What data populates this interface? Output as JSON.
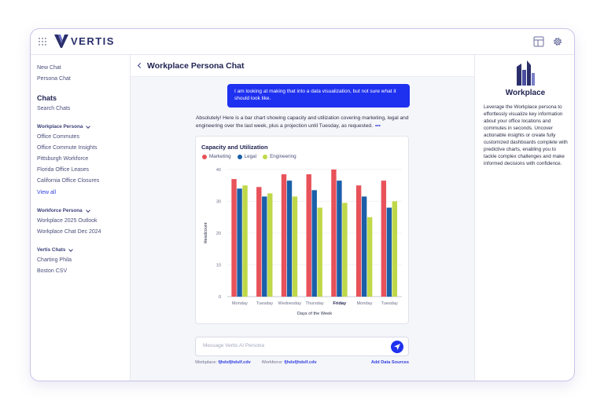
{
  "app": {
    "name": "VERTIS"
  },
  "sidebar": {
    "top_links": [
      "New Chat",
      "Persona Chat"
    ],
    "chats_heading": "Chats",
    "search_chats": "Search Chats",
    "groups": [
      {
        "label": "Workplace Persona",
        "items": [
          "Office Commutes",
          "Office Commute Insights",
          "Pittsburgh Workforce",
          "Florida Office Leases",
          "California Office Closures"
        ],
        "view_all": "View all"
      },
      {
        "label": "Workforce Persona",
        "items": [
          "Workplace 2025 Outlook",
          "Workplace Chat Dec 2024"
        ]
      },
      {
        "label": "Vertis Chats",
        "items": [
          "Charting Phila",
          "Boston CSV"
        ]
      }
    ]
  },
  "main": {
    "title": "Workplace Persona Chat",
    "user_message": "I am looking at making that into a data visualization, but not sure what it should look like.",
    "assistant_message": "Absolutely! Here is a bar chart showing capacity and utilization covering marketing, legal and engineering over the last week, plus a projection until Tuesday, as requested.",
    "input_placeholder": "Message Vertis AI Persona",
    "sources": {
      "workplace_label": "Workplace:",
      "workplace_file": "fjhdsfjhdslf.cdv",
      "workforce_label": "Workforce:",
      "workforce_file": "fjhdsfjhdslf.cdv",
      "add_label": "Add Data Sources"
    }
  },
  "chart_data": {
    "type": "bar",
    "title": "Capacity and Utilization",
    "xlabel": "Days of the Week",
    "ylabel": "Headcount",
    "ylim": [
      0,
      40
    ],
    "yticks": [
      0,
      10,
      20,
      30,
      40
    ],
    "grid": true,
    "legend": "top-left",
    "highlighted_category": "Friday",
    "categories": [
      "Monday",
      "Tuesday",
      "Wednesday",
      "Thursday",
      "Friday",
      "Monday",
      "Tuesday"
    ],
    "series": [
      {
        "name": "Marketing",
        "color": "#e8525a",
        "values": [
          37,
          34.5,
          38.5,
          38.5,
          40,
          35,
          36.5
        ]
      },
      {
        "name": "Legal",
        "color": "#1a5fa8",
        "values": [
          34,
          31.5,
          36.5,
          33.5,
          36.5,
          31.5,
          28
        ]
      },
      {
        "name": "Engineering",
        "color": "#bfd849",
        "values": [
          35,
          32.5,
          31.5,
          28,
          29.5,
          25,
          30
        ]
      }
    ]
  },
  "rightpanel": {
    "title": "Workplace",
    "description": "Leverage the Workplace persona to effortlessly visualize key information about your office locations and commutes in seconds. Uncover actionable insights or create fully customized dashboards complete with predictive charts, enabling you to tackle complex challenges and make informed decisions with confidence."
  },
  "colors": {
    "accent": "#1f31f0",
    "navy": "#1e2150"
  },
  "icons": {
    "apps": "grid-dots-icon",
    "layout": "layout-panel-icon",
    "settings": "gear-icon",
    "back": "chevron-left-icon",
    "send": "send-icon",
    "persona": "buildings-icon"
  }
}
